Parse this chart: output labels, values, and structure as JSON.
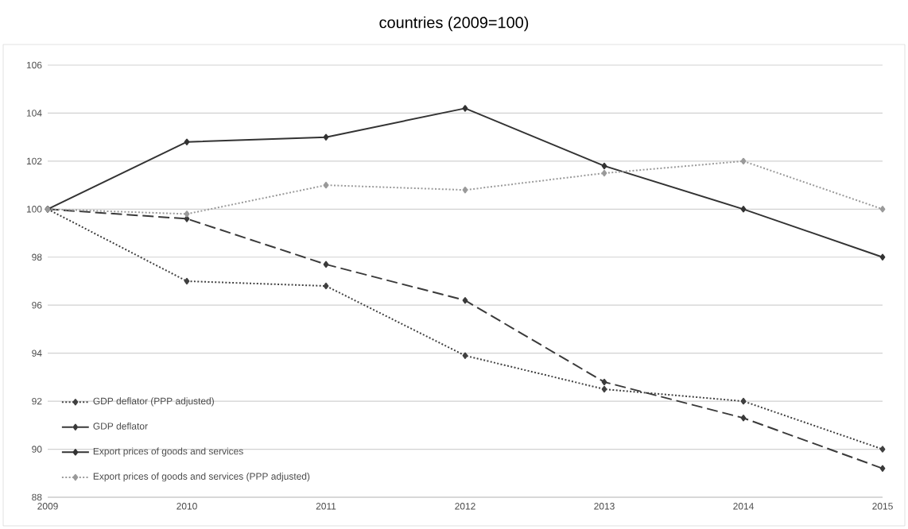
{
  "chart_data": {
    "type": "line",
    "title": "countries (2009=100)",
    "categories": [
      "2009",
      "2010",
      "2011",
      "2012",
      "2013",
      "2014",
      "2015"
    ],
    "series": [
      {
        "name": "GDP deflator (PPP adjusted)",
        "color": "#404040",
        "line_style": "dotted",
        "marker": "diamond",
        "values": [
          100,
          97.0,
          96.8,
          93.9,
          92.5,
          92.0,
          90.0
        ]
      },
      {
        "name": "GDP deflator",
        "color": "#3a3a3a",
        "line_style": "dashed",
        "marker": "diamond",
        "values": [
          100,
          99.6,
          97.7,
          96.2,
          92.8,
          91.3,
          89.2
        ]
      },
      {
        "name": "Export prices of goods and services",
        "color": "#333333",
        "line_style": "solid",
        "marker": "diamond",
        "values": [
          100,
          102.8,
          103.0,
          104.2,
          101.8,
          100.0,
          98.0
        ]
      },
      {
        "name": "Export prices of goods and services (PPP adjusted)",
        "color": "#9a9a9a",
        "line_style": "dotted",
        "marker": "diamond",
        "values": [
          100,
          99.8,
          101.0,
          100.8,
          101.5,
          102.0,
          100.0
        ]
      }
    ],
    "ylim": [
      88,
      106
    ],
    "yticks": [
      88,
      90,
      92,
      94,
      96,
      98,
      100,
      102,
      104,
      106
    ],
    "grid": "y",
    "legend": "bottom left"
  }
}
